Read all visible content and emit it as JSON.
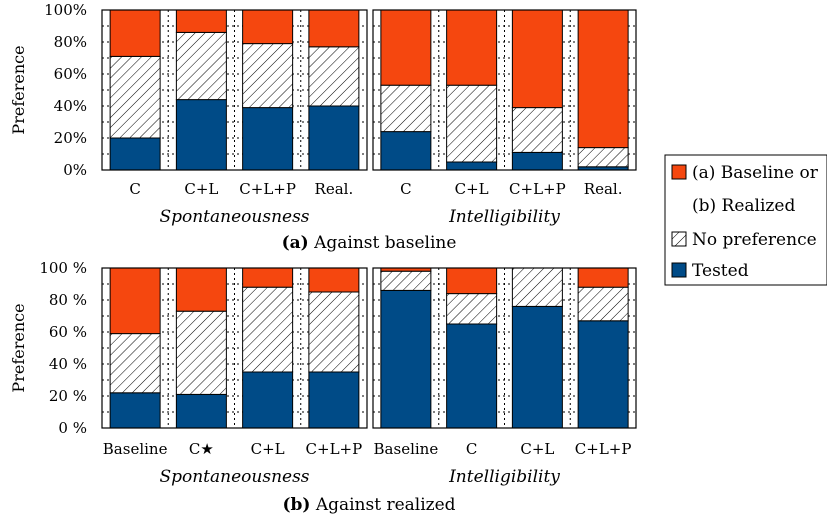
{
  "colors": {
    "baseline_or_realized": "#f5470f",
    "no_preference_fill": "#ffffff",
    "tested": "#004b87",
    "hatch": "#000000"
  },
  "legend": {
    "items": [
      {
        "key": "baseline_or_realized",
        "lines": [
          "(a) Baseline or",
          "(b) Realized"
        ]
      },
      {
        "key": "no_preference",
        "lines": [
          "No preference"
        ]
      },
      {
        "key": "tested",
        "lines": [
          "Tested"
        ]
      }
    ]
  },
  "chart_data": [
    {
      "type": "bar",
      "stacked": true,
      "caption_tag": "(a)",
      "caption_text": "Against baseline",
      "ylabel": "Preference",
      "ylim": [
        0,
        100
      ],
      "yticks": [
        "0%",
        "20%",
        "40%",
        "60%",
        "80%",
        "100%"
      ],
      "grid": true,
      "groups": [
        {
          "title": "Spontaneousness",
          "categories": [
            "C",
            "C+L",
            "C+L+P",
            "Real."
          ],
          "series": [
            {
              "key": "tested",
              "values": [
                20,
                44,
                39,
                40
              ]
            },
            {
              "key": "no_preference",
              "values": [
                51,
                42,
                40,
                37
              ]
            },
            {
              "key": "baseline_or_realized",
              "values": [
                29,
                14,
                21,
                23
              ]
            }
          ]
        },
        {
          "title": "Intelligibility",
          "categories": [
            "C",
            "C+L",
            "C+L+P",
            "Real."
          ],
          "series": [
            {
              "key": "tested",
              "values": [
                24,
                5,
                11,
                2
              ]
            },
            {
              "key": "no_preference",
              "values": [
                29,
                48,
                28,
                12
              ]
            },
            {
              "key": "baseline_or_realized",
              "values": [
                47,
                47,
                61,
                86
              ]
            }
          ]
        }
      ]
    },
    {
      "type": "bar",
      "stacked": true,
      "caption_tag": "(b)",
      "caption_text": "Against realized",
      "ylabel": "Preference",
      "ylim": [
        0,
        100
      ],
      "yticks": [
        "0 %",
        "20 %",
        "40 %",
        "60 %",
        "80 %",
        "100 %"
      ],
      "grid": true,
      "groups": [
        {
          "title": "Spontaneousness",
          "categories": [
            "Baseline",
            "C★",
            "C+L",
            "C+L+P"
          ],
          "series": [
            {
              "key": "tested",
              "values": [
                22,
                21,
                35,
                35
              ]
            },
            {
              "key": "no_preference",
              "values": [
                37,
                52,
                53,
                50
              ]
            },
            {
              "key": "baseline_or_realized",
              "values": [
                41,
                27,
                12,
                15
              ]
            }
          ]
        },
        {
          "title": "Intelligibility",
          "categories": [
            "Baseline",
            "C",
            "C+L",
            "C+L+P"
          ],
          "series": [
            {
              "key": "tested",
              "values": [
                86,
                65,
                76,
                67
              ]
            },
            {
              "key": "no_preference",
              "values": [
                12,
                19,
                24,
                21
              ]
            },
            {
              "key": "baseline_or_realized",
              "values": [
                2,
                16,
                0,
                12
              ]
            }
          ]
        }
      ]
    }
  ]
}
